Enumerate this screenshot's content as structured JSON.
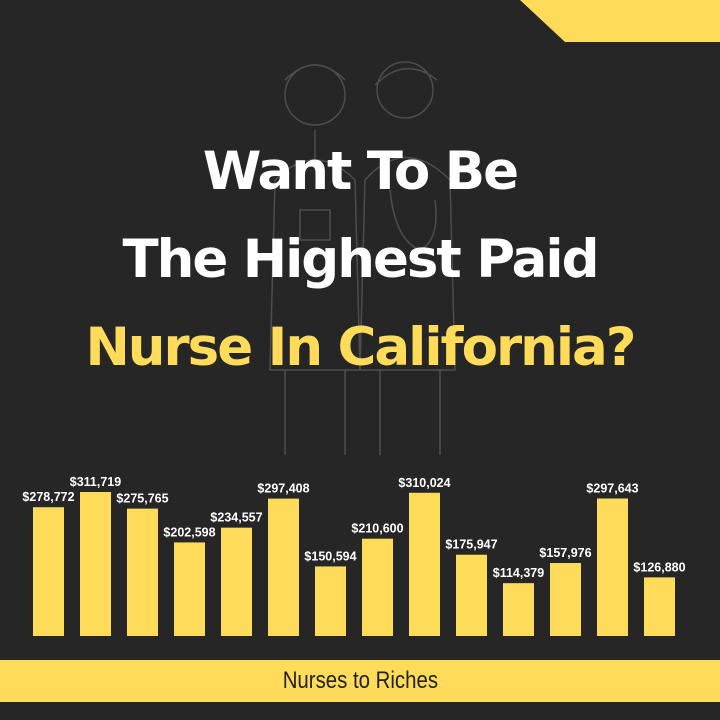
{
  "headline": {
    "line1": "Want To Be",
    "line2": "The Highest Paid",
    "line3": "Nurse In California?"
  },
  "footer": {
    "brand": "Nurses to Riches"
  },
  "colors": {
    "background": "#262626",
    "accent": "#fedc5a",
    "text": "#ffffff"
  },
  "chart_data": {
    "type": "bar",
    "values": [
      278772,
      311719,
      275765,
      202598,
      234557,
      297408,
      150594,
      210600,
      310024,
      175947,
      114379,
      157976,
      297643,
      126880
    ],
    "labels": [
      "$278,772",
      "$311,719",
      "$275,765",
      "$202,598",
      "$234,557",
      "$297,408",
      "$150,594",
      "$210,600",
      "$310,024",
      "$175,947",
      "$114,379",
      "$157,976",
      "$297,643",
      "$126,880"
    ],
    "categories": [],
    "title": "",
    "xlabel": "",
    "ylabel": "",
    "ylim": [
      0,
      311719
    ],
    "grid": false,
    "color": "#fedc5a"
  }
}
